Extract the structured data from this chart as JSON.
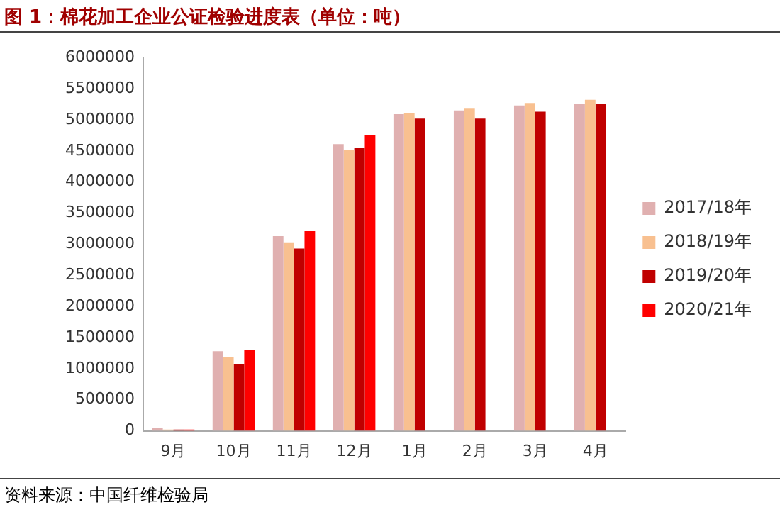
{
  "chart_data": {
    "type": "bar",
    "title": "图 1：棉花加工企业公证检验进度表（单位：吨）",
    "categories": [
      "9月",
      "10月",
      "11月",
      "12月",
      "1月",
      "2月",
      "3月",
      "4月"
    ],
    "series": [
      {
        "name": "2017/18年",
        "color": "#e0b0b0",
        "values": [
          40000,
          1280000,
          3130000,
          4610000,
          5090000,
          5150000,
          5230000,
          5260000
        ]
      },
      {
        "name": "2018/19年",
        "color": "#f8c090",
        "values": [
          20000,
          1180000,
          3030000,
          4510000,
          5110000,
          5180000,
          5270000,
          5320000
        ]
      },
      {
        "name": "2019/20年",
        "color": "#c00000",
        "values": [
          20000,
          1070000,
          2930000,
          4550000,
          5020000,
          5020000,
          5130000,
          5250000
        ]
      },
      {
        "name": "2020/21年",
        "color": "#ff0000",
        "values": [
          20000,
          1300000,
          3210000,
          4750000,
          null,
          null,
          null,
          null
        ]
      }
    ],
    "ylim": [
      0,
      6000000
    ],
    "yticks": [
      0,
      500000,
      1000000,
      1500000,
      2000000,
      2500000,
      3000000,
      3500000,
      4000000,
      4500000,
      5000000,
      5500000,
      6000000
    ],
    "grid": false,
    "legend": "right",
    "annotations": [
      "资料来源：中国纤维检验局"
    ]
  }
}
